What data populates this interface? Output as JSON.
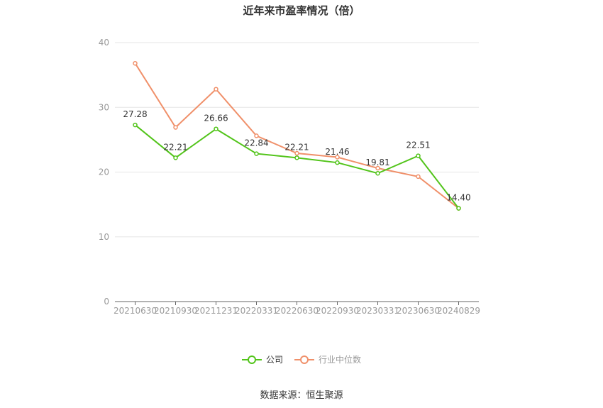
{
  "chart_data": {
    "type": "line",
    "title": "近年来市盈率情况（倍）",
    "categories": [
      "20210630",
      "20210930",
      "20211231",
      "20220331",
      "20220630",
      "20220930",
      "20230331",
      "20230630",
      "20240829"
    ],
    "ylim": [
      0,
      40
    ],
    "yticks": [
      0,
      10,
      20,
      30,
      40
    ],
    "grid": true,
    "legend_position": "bottom",
    "series": [
      {
        "name": "公司",
        "color": "#52c41a",
        "values": [
          27.28,
          22.21,
          26.66,
          22.84,
          22.21,
          21.46,
          19.81,
          22.51,
          14.4
        ],
        "labels": [
          "27.28",
          "22.21",
          "26.66",
          "22.84",
          "22.21",
          "21.46",
          "19.81",
          "22.51",
          "14.40"
        ]
      },
      {
        "name": "行业中位数",
        "color": "#f0906a",
        "values": [
          36.8,
          26.9,
          32.8,
          25.6,
          22.9,
          22.3,
          20.6,
          19.3,
          14.4
        ]
      }
    ]
  },
  "source_note": "数据来源：恒生聚源"
}
